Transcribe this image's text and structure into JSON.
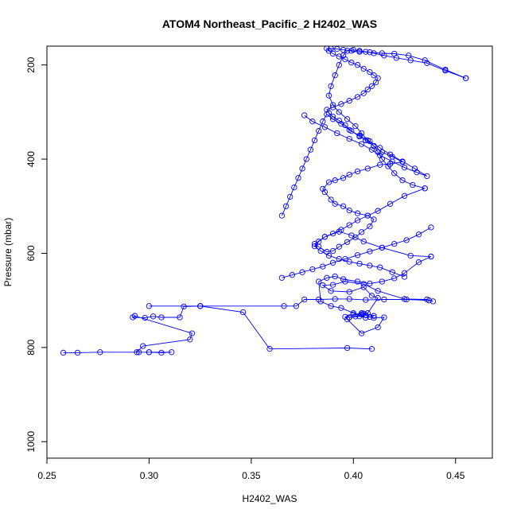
{
  "chart_data": {
    "type": "line",
    "title": "ATOM4 Northeast_Pacific_2 H2402_WAS",
    "xlabel": "H2402_WAS",
    "ylabel": "Pressure (mbar)",
    "xlim": [
      0.25,
      0.468
    ],
    "ylim": [
      1035,
      160
    ],
    "y_reversed": true,
    "x_ticks": [
      0.25,
      0.3,
      0.35,
      0.4,
      0.45
    ],
    "x_tick_labels": [
      "0.25",
      "0.30",
      "0.35",
      "0.40",
      "0.45"
    ],
    "y_ticks": [
      200,
      400,
      600,
      800,
      1000
    ],
    "y_tick_labels": [
      "200",
      "400",
      "600",
      "800",
      "1000"
    ],
    "grid": false,
    "legend": "none",
    "series_color": "#0000ff",
    "series": [
      {
        "x": [
          0.258,
          0.265,
          0.276,
          0.295,
          0.3,
          0.306,
          0.311,
          0.3,
          0.294,
          0.297,
          0.32,
          0.321,
          0.293,
          0.292,
          0.298,
          0.302,
          0.306,
          0.315,
          0.317,
          0.325,
          0.3,
          0.325,
          0.346,
          0.359,
          0.397,
          0.409
        ],
        "y": [
          811,
          811,
          810,
          810,
          810,
          811,
          810,
          810,
          810,
          797,
          783,
          770,
          733,
          736,
          737,
          734,
          736,
          736,
          713,
          712,
          712,
          712,
          725,
          803,
          801,
          803
        ]
      },
      {
        "x": [
          0.325,
          0.366,
          0.372,
          0.376,
          0.383,
          0.391,
          0.398,
          0.406,
          0.415,
          0.426,
          0.437,
          0.439,
          0.436,
          0.425,
          0.412,
          0.405,
          0.396,
          0.39,
          0.385,
          0.389,
          0.398,
          0.405,
          0.409,
          0.412,
          0.407,
          0.403,
          0.398
        ],
        "y": [
          712,
          712,
          712,
          698,
          698,
          697,
          697,
          699,
          698,
          698,
          700,
          702,
          698,
          697,
          680,
          665,
          660,
          667,
          668,
          680,
          682,
          672,
          690,
          695,
          727,
          734,
          736
        ]
      },
      {
        "x": [
          0.398,
          0.401,
          0.404,
          0.405,
          0.406,
          0.408,
          0.41,
          0.415,
          0.412,
          0.404,
          0.397,
          0.396,
          0.4,
          0.404,
          0.41,
          0.406,
          0.4,
          0.394,
          0.389,
          0.384,
          0.383,
          0.387,
          0.391,
          0.395,
          0.402,
          0.408,
          0.414,
          0.42,
          0.425,
          0.432,
          0.438
        ],
        "y": [
          736,
          734,
          730,
          728,
          731,
          735,
          737,
          736,
          757,
          770,
          740,
          735,
          730,
          727,
          733,
          737,
          727,
          716,
          712,
          702,
          660,
          652,
          649,
          655,
          660,
          664,
          660,
          653,
          642,
          619,
          607
        ]
      },
      {
        "x": [
          0.438,
          0.428,
          0.414,
          0.405,
          0.399,
          0.393,
          0.386,
          0.381,
          0.383,
          0.387,
          0.39,
          0.393,
          0.397,
          0.401,
          0.404,
          0.408,
          0.41,
          0.407,
          0.402,
          0.398,
          0.395,
          0.391,
          0.389,
          0.386,
          0.385,
          0.388,
          0.391,
          0.395,
          0.398,
          0.402,
          0.407,
          0.413,
          0.418,
          0.424
        ],
        "y": [
          607,
          605,
          588,
          575,
          562,
          554,
          565,
          580,
          586,
          597,
          595,
          586,
          576,
          566,
          555,
          543,
          528,
          520,
          515,
          509,
          500,
          495,
          486,
          470,
          463,
          449,
          445,
          440,
          433,
          426,
          420,
          412,
          410,
          406
        ]
      },
      {
        "x": [
          0.424,
          0.419,
          0.414,
          0.41,
          0.406,
          0.403,
          0.399,
          0.396,
          0.393,
          0.39,
          0.388,
          0.387,
          0.39,
          0.394,
          0.398,
          0.402,
          0.405,
          0.407,
          0.409,
          0.411,
          0.412,
          0.41,
          0.408,
          0.405,
          0.402,
          0.399,
          0.396,
          0.393,
          0.39,
          0.388,
          0.387,
          0.389,
          0.392,
          0.395,
          0.399,
          0.403,
          0.408,
          0.414,
          0.42,
          0.427,
          0.435,
          0.445,
          0.455
        ],
        "y": [
          406,
          395,
          385,
          372,
          360,
          352,
          340,
          328,
          318,
          310,
          302,
          295,
          290,
          283,
          276,
          268,
          260,
          252,
          245,
          237,
          228,
          222,
          215,
          208,
          200,
          195,
          188,
          182,
          176,
          170,
          165,
          165,
          166,
          168,
          170,
          172,
          173,
          175,
          176,
          180,
          190,
          210,
          228
        ]
      },
      {
        "x": [
          0.455,
          0.445,
          0.436,
          0.428,
          0.421,
          0.415,
          0.41,
          0.406,
          0.403,
          0.4,
          0.397,
          0.395,
          0.393,
          0.391,
          0.389,
          0.388,
          0.39,
          0.393,
          0.397,
          0.401,
          0.404,
          0.407,
          0.41,
          0.412,
          0.414,
          0.417,
          0.42,
          0.424,
          0.429,
          0.435
        ],
        "y": [
          228,
          212,
          196,
          190,
          185,
          180,
          175,
          172,
          170,
          168,
          170,
          180,
          200,
          222,
          245,
          265,
          285,
          300,
          315,
          330,
          345,
          360,
          372,
          385,
          400,
          415,
          430,
          445,
          455,
          462
        ]
      },
      {
        "x": [
          0.435,
          0.425,
          0.418,
          0.412,
          0.407,
          0.402,
          0.398,
          0.394,
          0.39,
          0.386,
          0.383,
          0.381,
          0.384,
          0.388,
          0.393,
          0.398,
          0.403,
          0.408,
          0.413,
          0.419,
          0.425
        ],
        "y": [
          462,
          478,
          495,
          510,
          520,
          530,
          540,
          550,
          558,
          565,
          575,
          585,
          595,
          605,
          612,
          618,
          622,
          626,
          630,
          640,
          650
        ]
      },
      {
        "x": [
          0.376,
          0.38,
          0.386,
          0.392,
          0.398,
          0.404,
          0.409,
          0.413,
          0.419,
          0.425,
          0.431,
          0.436,
          0.43,
          0.424,
          0.418,
          0.413,
          0.408,
          0.403,
          0.398,
          0.394,
          0.39,
          0.387,
          0.385,
          0.383,
          0.381,
          0.379,
          0.377,
          0.375,
          0.373,
          0.371,
          0.369,
          0.367,
          0.365
        ],
        "y": [
          307,
          320,
          332,
          345,
          357,
          368,
          380,
          392,
          405,
          418,
          428,
          436,
          420,
          405,
          390,
          376,
          362,
          350,
          338,
          325,
          315,
          305,
          320,
          340,
          360,
          380,
          400,
          420,
          440,
          460,
          480,
          500,
          520
        ]
      },
      {
        "x": [
          0.365,
          0.37,
          0.375,
          0.38,
          0.385,
          0.39,
          0.396,
          0.402,
          0.408,
          0.414,
          0.42,
          0.426,
          0.432,
          0.438
        ],
        "y": [
          652,
          646,
          640,
          634,
          628,
          620,
          612,
          604,
          596,
          588,
          580,
          572,
          560,
          545
        ]
      }
    ]
  }
}
